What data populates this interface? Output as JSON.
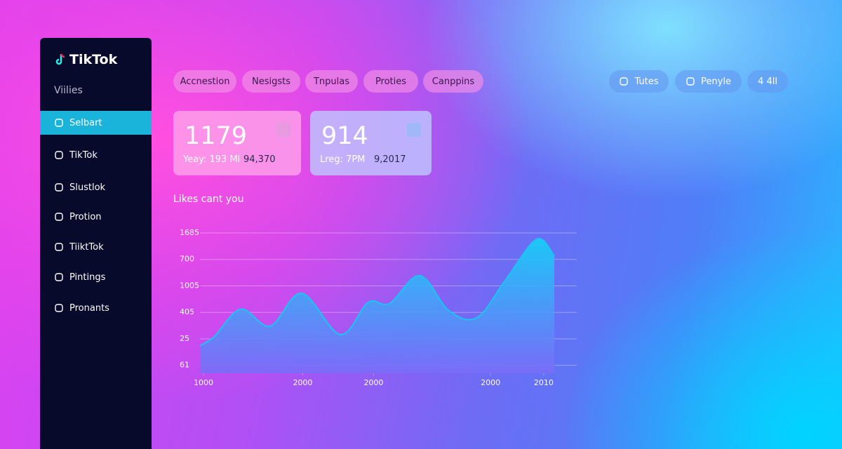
{
  "sidebar": {
    "brand": "TikTok",
    "section": "Viilies",
    "items": [
      "Selbart",
      "TikTok",
      "Slustlok",
      "Protion",
      "TiiktTok",
      "Pintings",
      "Pronants"
    ],
    "active": 0
  },
  "tabs": [
    "Accnestion",
    "Nesigsts",
    "Tnpulas",
    "Proties",
    "Canppins"
  ],
  "buttons": [
    "Tutes",
    "Penyle",
    "4 4ll"
  ],
  "cards": [
    {
      "value": "1179",
      "left": "Yeay: 193 Ml",
      "right": "94,370"
    },
    {
      "value": "914",
      "left": "Lreg: 7PM",
      "right": "9,2017"
    }
  ],
  "chart_data": {
    "type": "area",
    "title": "Likes cant you",
    "x": [
      0,
      4,
      11.5,
      19.8,
      28.7,
      39.6,
      47.5,
      53.5,
      62,
      70.3,
      78.2,
      86.1,
      95,
      100
    ],
    "values": [
      0.74,
      1.08,
      2.12,
      1.48,
      2.72,
      1.16,
      2.38,
      2.33,
      3.39,
      2.06,
      1.8,
      3.2,
      4.76,
      4.13
    ],
    "xlim": [
      0,
      100
    ],
    "xticks": [
      {
        "value": 1,
        "label": "1000"
      },
      {
        "value": 29,
        "label": "2000"
      },
      {
        "value": 49,
        "label": "2000"
      },
      {
        "value": 82,
        "label": "2000"
      },
      {
        "value": 97,
        "label": "2010"
      }
    ],
    "ylim": [
      -0.3,
      5
    ],
    "yticks": [
      {
        "value": 5,
        "label": "1685"
      },
      {
        "value": 4,
        "label": "700"
      },
      {
        "value": 3,
        "label": "1005"
      },
      {
        "value": 2,
        "label": "405"
      },
      {
        "value": 1,
        "label": "25"
      },
      {
        "value": 0,
        "label": "61"
      }
    ],
    "grid": true,
    "color": "#19c6f0"
  }
}
